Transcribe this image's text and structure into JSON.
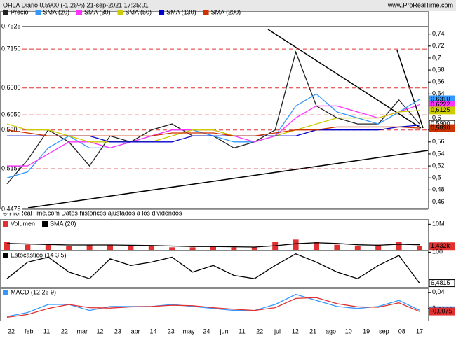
{
  "header": {
    "title": "OHLA Diario 0,5900 (-1,26%) 21-sep-2021 17:35:01",
    "site": "www.ProRealTime.com",
    "note": "© ProRealTime.com  Datos históricos ajustados a los dividendos"
  },
  "chart_data": [
    {
      "type": "line",
      "ylim": [
        0.45,
        0.7525
      ],
      "yticks": [
        {
          "value": 0.46,
          "label": "0,46"
        },
        {
          "value": 0.48,
          "label": "0,48"
        },
        {
          "value": 0.5,
          "label": "0,5"
        },
        {
          "value": 0.52,
          "label": "0,52"
        },
        {
          "value": 0.54,
          "label": "0,54"
        },
        {
          "value": 0.56,
          "label": "0,56"
        },
        {
          "value": 0.58,
          "label": "0,58"
        },
        {
          "value": 0.6,
          "label": "0,6"
        },
        {
          "value": 0.62,
          "label": "0,62"
        },
        {
          "value": 0.64,
          "label": "0,64"
        },
        {
          "value": 0.66,
          "label": "0,66"
        },
        {
          "value": 0.68,
          "label": "0,68"
        },
        {
          "value": 0.7,
          "label": "0,7"
        },
        {
          "value": 0.72,
          "label": "0,72"
        },
        {
          "value": 0.74,
          "label": "0,74"
        }
      ],
      "levels": [
        {
          "value": 0.7525,
          "label": "0,7525",
          "color": "#000000"
        },
        {
          "value": 0.715,
          "label": "0,7150",
          "color": "#e03030"
        },
        {
          "value": 0.65,
          "label": "0,6500",
          "color": "#e03030"
        },
        {
          "value": 0.605,
          "label": "0,6050",
          "color": "#e03030"
        },
        {
          "value": 0.58,
          "label": "0,5800",
          "color": "#e03030"
        },
        {
          "value": 0.5153,
          "label": "0,5153",
          "color": "#e03030"
        },
        {
          "value": 0.4478,
          "label": "0,4478",
          "color": "#000000"
        }
      ],
      "last_labels": [
        {
          "value": 0.631,
          "label": "0,6310",
          "color": "#3399ff"
        },
        {
          "value": 0.6222,
          "label": "0,6222",
          "color": "#ff33ff"
        },
        {
          "value": 0.6125,
          "label": "0,6125",
          "color": "#cccc00"
        },
        {
          "value": 0.59,
          "label": "0,5900",
          "color": "#000000"
        },
        {
          "value": 0.583,
          "label": "0,5830",
          "color": "#cc3300"
        }
      ],
      "x_labels": [
        "22",
        "feb",
        "11",
        "22",
        "mar",
        "12",
        "23",
        "abr",
        "14",
        "23",
        "may",
        "24",
        "jun",
        "11",
        "22",
        "jul",
        "12",
        "21",
        "ago",
        "10",
        "19",
        "sep",
        "08",
        "17"
      ],
      "series": [
        {
          "name": "Precio",
          "color": "#222222",
          "values": [
            0.49,
            0.53,
            0.58,
            0.56,
            0.52,
            0.57,
            0.56,
            0.58,
            0.59,
            0.57,
            0.57,
            0.55,
            0.56,
            0.58,
            0.71,
            0.62,
            0.6,
            0.59,
            0.59,
            0.63,
            0.59
          ]
        },
        {
          "name": "SMA (20)",
          "color": "#3399ff",
          "values": [
            0.5,
            0.51,
            0.55,
            0.57,
            0.55,
            0.55,
            0.56,
            0.57,
            0.58,
            0.58,
            0.57,
            0.56,
            0.56,
            0.57,
            0.62,
            0.64,
            0.61,
            0.6,
            0.59,
            0.61,
            0.631
          ]
        },
        {
          "name": "SMA (30)",
          "color": "#ff33ff",
          "values": [
            0.52,
            0.52,
            0.54,
            0.56,
            0.56,
            0.55,
            0.56,
            0.57,
            0.58,
            0.58,
            0.58,
            0.57,
            0.56,
            0.57,
            0.6,
            0.62,
            0.62,
            0.61,
            0.6,
            0.61,
            0.6222
          ]
        },
        {
          "name": "SMA (50)",
          "color": "#cccc00",
          "values": [
            0.59,
            0.58,
            0.58,
            0.57,
            0.56,
            0.56,
            0.56,
            0.56,
            0.57,
            0.58,
            0.58,
            0.57,
            0.57,
            0.57,
            0.58,
            0.59,
            0.6,
            0.6,
            0.6,
            0.61,
            0.6125
          ]
        },
        {
          "name": "SMA (130)",
          "color": "#0000cc",
          "values": [
            0.57,
            0.57,
            0.57,
            0.57,
            0.57,
            0.56,
            0.56,
            0.56,
            0.56,
            0.57,
            0.57,
            0.57,
            0.57,
            0.57,
            0.57,
            0.58,
            0.58,
            0.58,
            0.58,
            0.585,
            0.588
          ]
        },
        {
          "name": "SMA (200)",
          "color": "#cc3300",
          "values": [
            0.58,
            0.575,
            0.57,
            0.57,
            0.57,
            0.57,
            0.57,
            0.57,
            0.575,
            0.575,
            0.575,
            0.57,
            0.57,
            0.575,
            0.58,
            0.58,
            0.585,
            0.585,
            0.585,
            0.585,
            0.583
          ]
        }
      ]
    },
    {
      "type": "bar",
      "ylim": [
        0,
        12000000
      ],
      "yticks": [
        {
          "value": 10000000,
          "label": "10M"
        }
      ],
      "last_labels": [
        {
          "value": 1432000,
          "label": "1,432k",
          "color": "#e03030"
        }
      ],
      "series": [
        {
          "name": "Volumen",
          "color": "#e03030",
          "values": [
            3000000,
            2000000,
            2000000,
            1500000,
            2000000,
            2000000,
            1500000,
            1500000,
            1000000,
            1000000,
            1500000,
            1000000,
            1000000,
            3000000,
            4000000,
            3000000,
            2000000,
            1500000,
            2000000,
            3000000,
            1432000
          ]
        },
        {
          "name": "SMA (20)",
          "color": "#000000",
          "values": [
            2500000,
            2300000,
            2100000,
            1900000,
            1900000,
            1900000,
            1800000,
            1700000,
            1500000,
            1300000,
            1300000,
            1200000,
            1100000,
            1600000,
            2400000,
            2800000,
            2500000,
            2000000,
            1800000,
            2200000,
            2000000
          ]
        }
      ]
    },
    {
      "type": "line",
      "ylim": [
        -5,
        105
      ],
      "yticks": [
        100
      ],
      "last_labels": [
        {
          "value": 6.4815,
          "label": "6,4815",
          "color": "#000000"
        }
      ],
      "series": [
        {
          "name": "Estocástico (14 3 5)",
          "color": "#000000",
          "values": [
            20,
            70,
            85,
            40,
            20,
            80,
            60,
            70,
            85,
            40,
            60,
            30,
            20,
            60,
            95,
            70,
            40,
            20,
            60,
            90,
            6.4815
          ]
        }
      ]
    },
    {
      "type": "line",
      "ylim": [
        -0.03,
        0.05
      ],
      "yticks": [
        {
          "value": 0.04,
          "label": "0,04"
        },
        0
      ],
      "last_labels": [
        {
          "value": -0.0044,
          "label": "-0,0044",
          "color": "#3399ff"
        },
        {
          "value": -0.0075,
          "label": "-0,0075",
          "color": "#e03030"
        }
      ],
      "series": [
        {
          "name": "MACD (12 26 9)",
          "color": "#3399ff",
          "values": [
            -0.02,
            -0.01,
            0.01,
            0.01,
            -0.005,
            0.005,
            0.005,
            0.005,
            0.01,
            0.005,
            0,
            -0.005,
            -0.005,
            0.01,
            0.035,
            0.02,
            0.005,
            0,
            0.005,
            0.02,
            -0.0044
          ]
        },
        {
          "color": "#e03030",
          "values": [
            -0.022,
            -0.015,
            0,
            0.01,
            0.002,
            0.001,
            0.004,
            0.005,
            0.008,
            0.007,
            0.002,
            -0.002,
            -0.005,
            0.002,
            0.025,
            0.027,
            0.012,
            0.004,
            0.003,
            0.014,
            -0.0075
          ]
        }
      ]
    }
  ]
}
